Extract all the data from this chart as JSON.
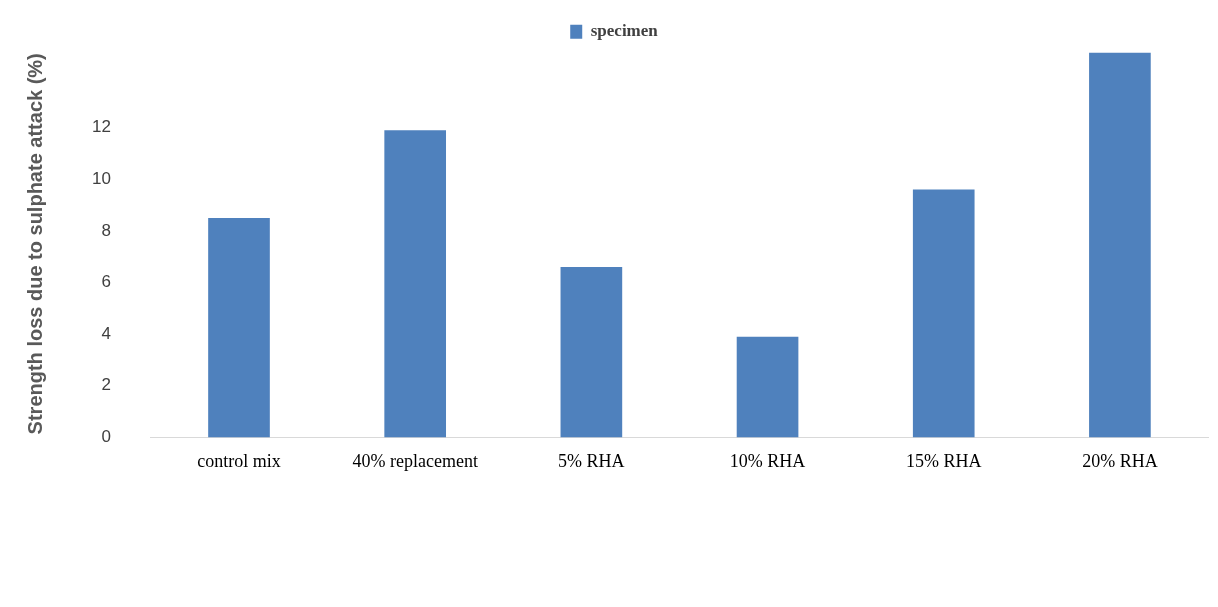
{
  "chart_data": {
    "type": "bar",
    "ylabel": "Strength loss due to sulphate attack (%)",
    "categories": [
      "control mix",
      "40% replacement",
      "5% RHA",
      "10% RHA",
      "15% RHA",
      "20% RHA"
    ],
    "series": [
      {
        "name": "specimen",
        "color": "#4f81bd",
        "values": [
          8.5,
          11.9,
          6.6,
          3.9,
          9.6,
          14.9
        ]
      }
    ],
    "ylim": [
      0,
      15
    ],
    "yticks": [
      0,
      2,
      4,
      6,
      8,
      10,
      12
    ],
    "grid": false,
    "legend": "top"
  }
}
